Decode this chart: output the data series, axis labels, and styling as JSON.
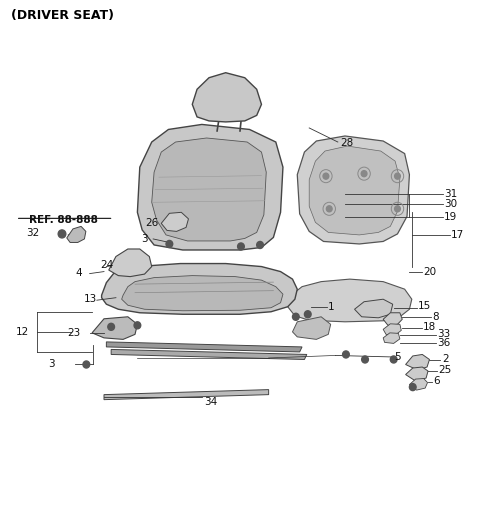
{
  "title": "(DRIVER SEAT)",
  "background_color": "#ffffff",
  "ref_text": "REF. 88-888",
  "gc": "#c8c8c8",
  "dc": "#aaaaaa",
  "ec_dark": "#444444",
  "ec_med": "#555555",
  "lc": "#333333"
}
